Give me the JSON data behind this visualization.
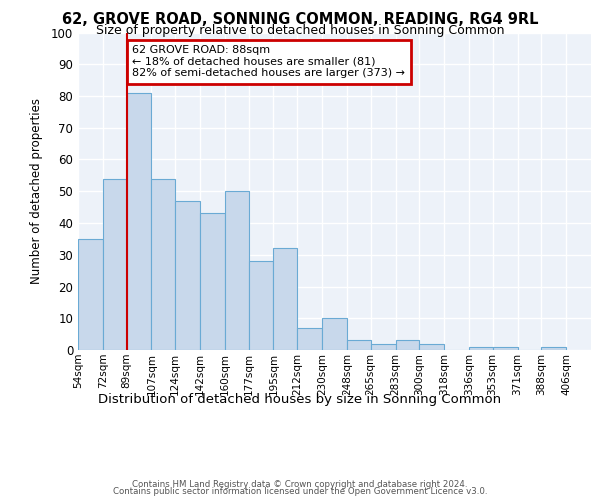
{
  "title1": "62, GROVE ROAD, SONNING COMMON, READING, RG4 9RL",
  "title2": "Size of property relative to detached houses in Sonning Common",
  "xlabel": "Distribution of detached houses by size in Sonning Common",
  "ylabel": "Number of detached properties",
  "footer1": "Contains HM Land Registry data © Crown copyright and database right 2024.",
  "footer2": "Contains public sector information licensed under the Open Government Licence v3.0.",
  "annotation_title": "62 GROVE ROAD: 88sqm",
  "annotation_line1": "← 18% of detached houses are smaller (81)",
  "annotation_line2": "82% of semi-detached houses are larger (373) →",
  "bar_left_edges": [
    54,
    72,
    89,
    107,
    124,
    142,
    160,
    177,
    195,
    212,
    230,
    248,
    265,
    283,
    300,
    318,
    336,
    353,
    371,
    388
  ],
  "bar_widths": [
    18,
    17,
    18,
    17,
    18,
    18,
    17,
    18,
    17,
    18,
    18,
    17,
    18,
    17,
    18,
    18,
    17,
    18,
    17,
    18
  ],
  "bar_heights": [
    35,
    54,
    81,
    54,
    47,
    43,
    50,
    28,
    32,
    7,
    10,
    3,
    2,
    3,
    2,
    0,
    1,
    1,
    0,
    1
  ],
  "bar_color": "#c8d8eb",
  "bar_edge_color": "#6aaad4",
  "vline_color": "#cc0000",
  "vline_x": 89,
  "annotation_box_color": "#cc0000",
  "plot_bg_color": "#edf2f9",
  "ylim": [
    0,
    100
  ],
  "yticks": [
    0,
    10,
    20,
    30,
    40,
    50,
    60,
    70,
    80,
    90,
    100
  ],
  "xtick_labels": [
    "54sqm",
    "72sqm",
    "89sqm",
    "107sqm",
    "124sqm",
    "142sqm",
    "160sqm",
    "177sqm",
    "195sqm",
    "212sqm",
    "230sqm",
    "248sqm",
    "265sqm",
    "283sqm",
    "300sqm",
    "318sqm",
    "336sqm",
    "353sqm",
    "371sqm",
    "388sqm",
    "406sqm"
  ]
}
